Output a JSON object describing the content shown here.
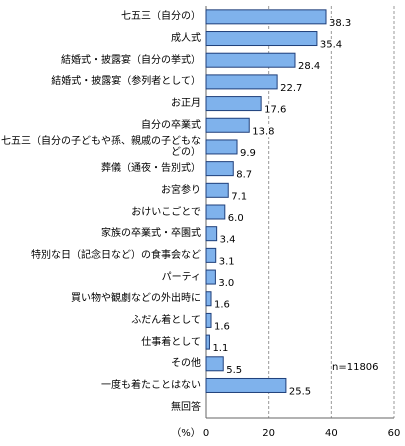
{
  "chart_data": {
    "type": "bar",
    "orientation": "horizontal",
    "categories": [
      "七五三（自分の）",
      "成人式",
      "結婚式・披露宴（自分の挙式）",
      "結婚式・披露宴（参列者として）",
      "お正月",
      "自分の卒業式",
      "七五三（自分の子どもや孫、親戚の子どもなどの）",
      "葬儀（通夜・告別式）",
      "お宮参り",
      "おけいこごとで",
      "家族の卒業式・卒園式",
      "特別な日（記念日など）の食事会など",
      "パーティ",
      "買い物や観劇などの外出時に",
      "ふだん着として",
      "仕事着として",
      "その他",
      "一度も着たことはない",
      "無回答"
    ],
    "values": [
      38.3,
      35.4,
      28.4,
      22.7,
      17.6,
      13.8,
      9.9,
      8.7,
      7.1,
      6.0,
      3.4,
      3.1,
      3.0,
      1.6,
      1.6,
      1.1,
      5.5,
      25.5,
      null
    ],
    "value_labels": [
      "38.3",
      "35.4",
      "28.4",
      "22.7",
      "17.6",
      "13.8",
      "9.9",
      "8.7",
      "7.1",
      "6.0",
      "3.4",
      "3.1",
      "3.0",
      "1.6",
      "1.6",
      "1.1",
      "5.5",
      "25.5",
      null
    ],
    "color": "#7fb2ec",
    "xlim": [
      0,
      60
    ],
    "xticks": [
      0,
      20,
      40,
      60
    ],
    "grid": true,
    "x_label": "（%）",
    "annotation": "n=11806"
  }
}
